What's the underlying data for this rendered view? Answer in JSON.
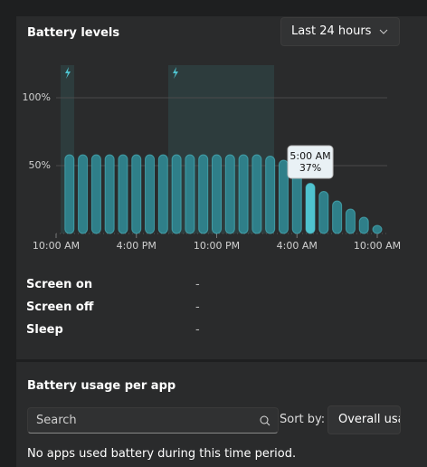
{
  "header": {
    "title": "Battery levels",
    "range_dropdown": "Last 24 hours"
  },
  "chart_data": {
    "type": "bar",
    "x": [
      1,
      2,
      3,
      4,
      5,
      6,
      7,
      8,
      9,
      10,
      11,
      12,
      13,
      14,
      15,
      16,
      17,
      18,
      19,
      20,
      21,
      22,
      23,
      24
    ],
    "values": [
      58,
      58,
      58,
      58,
      58,
      58,
      58,
      58,
      58,
      58,
      58,
      58,
      58,
      58,
      58,
      57,
      54,
      47,
      37,
      31,
      24,
      18,
      12,
      6
    ],
    "color": "#2f7f89",
    "highlight_color": "#4fc3cf",
    "xlim": [
      0,
      24
    ],
    "xticks": [
      {
        "value": 0,
        "label": "10:00 AM"
      },
      {
        "value": 6,
        "label": "4:00 PM"
      },
      {
        "value": 12,
        "label": "10:00 PM"
      },
      {
        "value": 18,
        "label": "4:00 AM"
      },
      {
        "value": 24,
        "label": "10:00 AM"
      }
    ],
    "ylim": [
      0,
      100
    ],
    "yticks": [
      {
        "value": 50,
        "label": "50%"
      },
      {
        "value": 100,
        "label": "100%"
      }
    ],
    "grid": true,
    "tooltip": {
      "index": 18,
      "x_label": "5:00 AM",
      "value_label": "37%"
    }
  },
  "usage": {
    "rows": [
      [
        "Screen on",
        "-"
      ],
      [
        "Screen off",
        "-"
      ],
      [
        "Sleep",
        "-"
      ]
    ]
  },
  "apps": {
    "title": "Battery usage per app",
    "search_placeholder": "Search",
    "sort_label": "Sort by:",
    "sort_value": "Overall usa",
    "empty_message": "No apps used battery during this time period."
  }
}
